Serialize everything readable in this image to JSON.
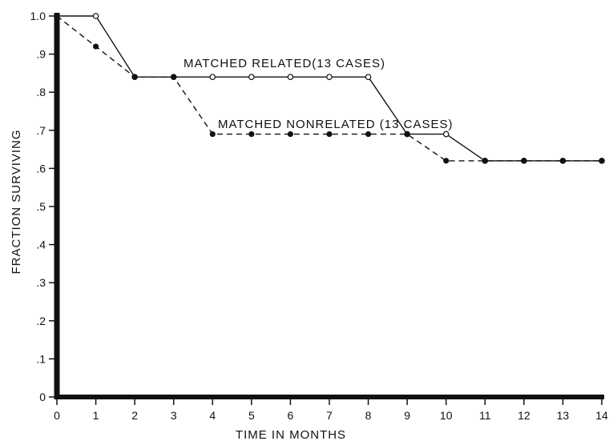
{
  "chart_data": {
    "type": "line",
    "title": "",
    "xlabel": "TIME IN MONTHS",
    "ylabel": "FRACTION SURVIVING",
    "xlim": [
      0,
      14
    ],
    "ylim": [
      0,
      1.0
    ],
    "grid": false,
    "x_ticks": [
      "0",
      "1",
      "2",
      "3",
      "4",
      "5",
      "6",
      "7",
      "8",
      "9",
      "10",
      "11",
      "12",
      "13",
      "14"
    ],
    "y_ticks": [
      "0",
      ".1",
      ".2",
      ".3",
      ".4",
      ".5",
      ".6",
      ".7",
      ".8",
      ".9",
      "1.0"
    ],
    "series": [
      {
        "name": "MATCHED RELATED(13 CASES)",
        "line_style": "solid",
        "marker": "open-circle",
        "x": [
          0,
          1,
          2,
          3,
          4,
          5,
          6,
          7,
          8,
          9,
          10,
          11,
          12,
          13,
          14
        ],
        "y": [
          1.0,
          1.0,
          0.84,
          0.84,
          0.84,
          0.84,
          0.84,
          0.84,
          0.84,
          0.69,
          0.69,
          0.62,
          0.62,
          0.62,
          0.62
        ]
      },
      {
        "name": "MATCHED NONRELATED (13 CASES)",
        "line_style": "dashed",
        "marker": "filled-circle",
        "x": [
          0,
          1,
          2,
          3,
          4,
          5,
          6,
          7,
          8,
          9,
          10,
          11,
          12,
          13,
          14
        ],
        "y": [
          1.0,
          0.92,
          0.84,
          0.84,
          0.69,
          0.69,
          0.69,
          0.69,
          0.69,
          0.69,
          0.62,
          0.62,
          0.62,
          0.62,
          0.62
        ]
      }
    ]
  }
}
